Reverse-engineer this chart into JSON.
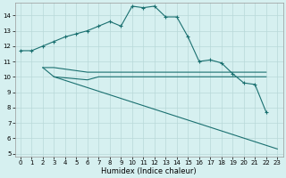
{
  "xlabel": "Humidex (Indice chaleur)",
  "bg_color": "#d6f0f0",
  "line_color": "#1a7070",
  "grid_color": "#b8d8d8",
  "xlim": [
    -0.5,
    23.5
  ],
  "ylim": [
    4.8,
    14.8
  ],
  "yticks": [
    5,
    6,
    7,
    8,
    9,
    10,
    11,
    12,
    13,
    14
  ],
  "xticks": [
    0,
    1,
    2,
    3,
    4,
    5,
    6,
    7,
    8,
    9,
    10,
    11,
    12,
    13,
    14,
    15,
    16,
    17,
    18,
    19,
    20,
    21,
    22,
    23
  ],
  "line1_x": [
    0,
    1,
    2,
    3,
    4,
    5,
    6,
    7,
    8,
    9,
    10,
    11,
    12,
    13,
    14,
    15,
    16,
    17,
    18,
    19,
    20,
    21,
    22
  ],
  "line1_y": [
    11.7,
    11.7,
    12.0,
    12.3,
    12.6,
    12.8,
    13.0,
    13.3,
    13.6,
    13.3,
    14.6,
    14.5,
    14.6,
    13.9,
    13.9,
    12.6,
    11.0,
    11.1,
    10.9,
    10.2,
    9.6,
    9.5,
    7.7
  ],
  "line2_x": [
    2,
    3,
    6,
    7,
    8,
    9,
    10,
    11,
    12,
    13,
    14,
    15,
    16,
    17,
    18,
    19,
    20,
    21,
    22
  ],
  "line2_y": [
    10.6,
    10.6,
    10.3,
    10.3,
    10.3,
    10.3,
    10.3,
    10.3,
    10.3,
    10.3,
    10.3,
    10.3,
    10.3,
    10.3,
    10.3,
    10.3,
    10.3,
    10.3,
    10.3
  ],
  "line3_x": [
    2,
    3,
    6,
    7,
    8,
    9,
    10,
    11,
    12,
    13,
    14,
    15,
    16,
    17,
    18,
    19,
    20,
    21,
    22
  ],
  "line3_y": [
    10.6,
    10.0,
    9.8,
    10.0,
    10.0,
    10.0,
    10.0,
    10.0,
    10.0,
    10.0,
    10.0,
    10.0,
    10.0,
    10.0,
    10.0,
    10.0,
    10.0,
    10.0,
    10.0
  ],
  "line4_x": [
    3,
    23
  ],
  "line4_y": [
    10.0,
    5.3
  ],
  "line5_x": [
    21,
    22,
    23
  ],
  "line5_y": [
    9.5,
    7.7,
    5.3
  ]
}
